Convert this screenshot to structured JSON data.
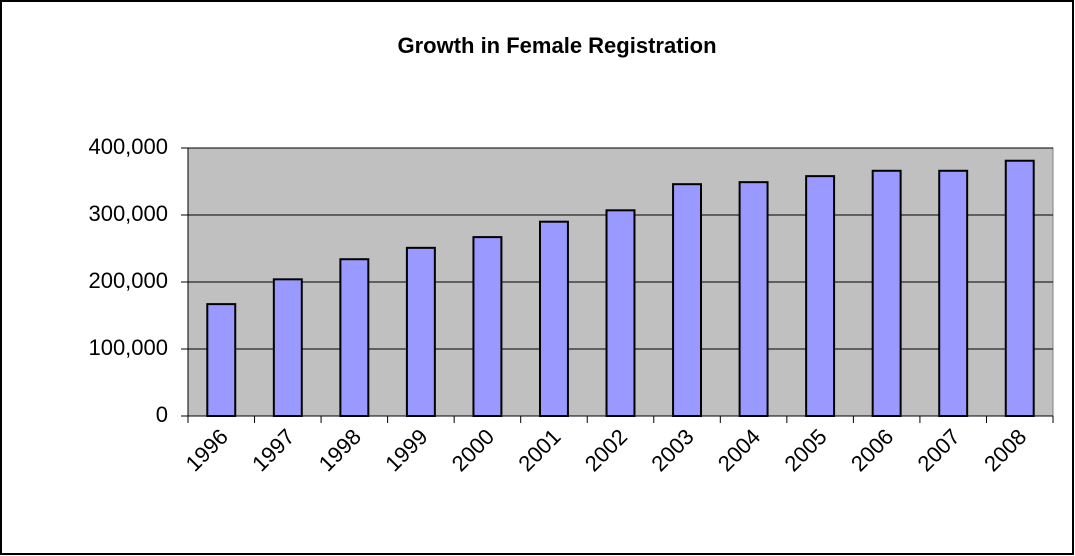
{
  "chart_data": {
    "type": "bar",
    "title": "Growth in Female Registration",
    "categories": [
      "1996",
      "1997",
      "1998",
      "1999",
      "2000",
      "2001",
      "2002",
      "2003",
      "2004",
      "2005",
      "2006",
      "2007",
      "2008"
    ],
    "values": [
      167000,
      204000,
      234000,
      251000,
      267000,
      290000,
      307000,
      346000,
      349000,
      358000,
      366000,
      366000,
      381000
    ],
    "color": "#9999ff",
    "ylim": [
      0,
      400000
    ],
    "yticks": [
      0,
      {
        "value": 100000,
        "label": "100,000"
      },
      {
        "value": 200000,
        "label": "200,000"
      },
      {
        "value": 300000,
        "label": "300,000"
      },
      {
        "value": 400000,
        "label": "400,000"
      }
    ],
    "grid": true
  }
}
